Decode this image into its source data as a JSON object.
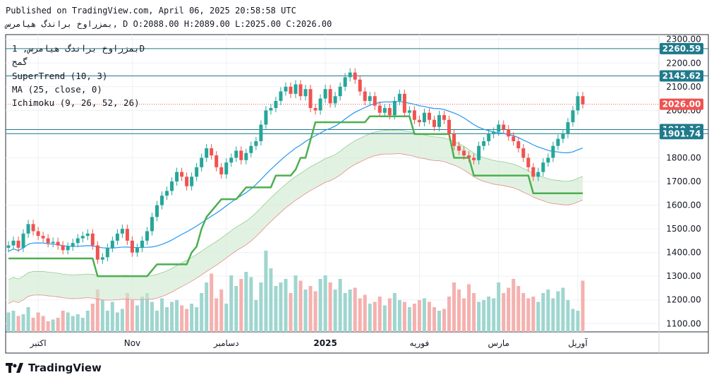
{
  "header": {
    "published": "Published on TradingView.com, April 06, 2025 20:58:58 UTC",
    "symbol": "بمزراوخ براندگ هیامرس",
    "ohlc": "D O:2088.00 H:2089.00 L:2025.00 C:2026.00"
  },
  "legend": {
    "title": "بمزراوخ براندگ هیامرس, 1D",
    "sub": "گمج",
    "supertrend": "SuperTrend (10, 3)",
    "ma": "MA (25, close, 0)",
    "ichimoku": "Ichimoku (9, 26, 52, 26)"
  },
  "branding": {
    "logo_text": "TradingView"
  },
  "colors": {
    "up": "#26a69a",
    "down": "#ef5350",
    "supertrend_up": "#4caf50",
    "supertrend_down": "#a14b4b",
    "ma": "#2196f3",
    "price_line": "#ef5350",
    "hline": "#1f7a8c",
    "cloud_bull": "#cfe9cf",
    "cloud_bear": "#f9d6d6"
  },
  "chart_data": {
    "type": "candlestick",
    "y_ticks": [
      "2300.00",
      "2200.00",
      "2100.00",
      "2000.00",
      "1900.00",
      "1800.00",
      "1700.00",
      "1600.00",
      "1500.00",
      "1400.00",
      "1300.00",
      "1200.00",
      "1100.00"
    ],
    "ylim": [
      1065,
      2320
    ],
    "x_ticks": [
      {
        "label": "اکتبر",
        "idx": 6
      },
      {
        "label": "Nov",
        "idx": 25
      },
      {
        "label": "دسامبر",
        "idx": 44
      },
      {
        "label": "2025",
        "idx": 64
      },
      {
        "label": "فوریه",
        "idx": 83
      },
      {
        "label": "مارس",
        "idx": 99
      },
      {
        "label": "آوریل",
        "idx": 115
      }
    ],
    "price_labels": [
      {
        "value": 2260.59,
        "text": "2260.59",
        "kind": "hline"
      },
      {
        "value": 2145.62,
        "text": "2145.62",
        "kind": "hline"
      },
      {
        "value": 2026.0,
        "text": "2026.00",
        "kind": "last"
      },
      {
        "value": 1919.16,
        "text": "1919.16",
        "kind": "hline"
      },
      {
        "value": 1901.74,
        "text": "1901.74",
        "kind": "hline"
      }
    ],
    "closes": [
      1430,
      1450,
      1420,
      1480,
      1520,
      1490,
      1470,
      1460,
      1440,
      1445,
      1430,
      1410,
      1425,
      1440,
      1460,
      1470,
      1480,
      1430,
      1370,
      1380,
      1420,
      1450,
      1480,
      1500,
      1450,
      1400,
      1420,
      1450,
      1490,
      1550,
      1600,
      1640,
      1660,
      1700,
      1740,
      1720,
      1680,
      1720,
      1760,
      1800,
      1840,
      1810,
      1760,
      1730,
      1780,
      1800,
      1830,
      1790,
      1820,
      1850,
      1870,
      1940,
      2000,
      2010,
      2040,
      2080,
      2100,
      2070,
      2110,
      2060,
      2090,
      2010,
      2000,
      2050,
      2090,
      2030,
      2060,
      2100,
      2140,
      2160,
      2130,
      2080,
      2040,
      2060,
      2020,
      1990,
      2010,
      1980,
      2040,
      2070,
      1990,
      2000,
      1960,
      1950,
      1990,
      1960,
      1930,
      1980,
      1960,
      1900,
      1850,
      1830,
      1810,
      1800,
      1790,
      1850,
      1870,
      1900,
      1910,
      1940,
      1920,
      1890,
      1870,
      1840,
      1800,
      1760,
      1720,
      1740,
      1780,
      1800,
      1850,
      1880,
      1900,
      1950,
      2000,
      2060,
      2026
    ],
    "volumes": [
      55,
      60,
      45,
      50,
      70,
      40,
      55,
      45,
      30,
      35,
      40,
      60,
      55,
      45,
      50,
      40,
      60,
      80,
      120,
      90,
      60,
      85,
      55,
      65,
      110,
      90,
      75,
      100,
      110,
      85,
      60,
      95,
      70,
      85,
      90,
      75,
      65,
      80,
      70,
      110,
      140,
      165,
      95,
      120,
      80,
      160,
      130,
      150,
      170,
      155,
      90,
      140,
      230,
      180,
      130,
      140,
      150,
      110,
      160,
      145,
      120,
      130,
      115,
      150,
      160,
      140,
      120,
      150,
      110,
      120,
      125,
      95,
      105,
      80,
      85,
      100,
      75,
      95,
      110,
      90,
      85,
      70,
      80,
      90,
      95,
      85,
      70,
      60,
      65,
      100,
      140,
      120,
      95,
      135,
      110,
      85,
      90,
      100,
      95,
      140,
      110,
      125,
      150,
      130,
      110,
      95,
      100,
      85,
      110,
      120,
      95,
      115,
      125,
      90,
      65,
      60,
      145
    ]
  }
}
